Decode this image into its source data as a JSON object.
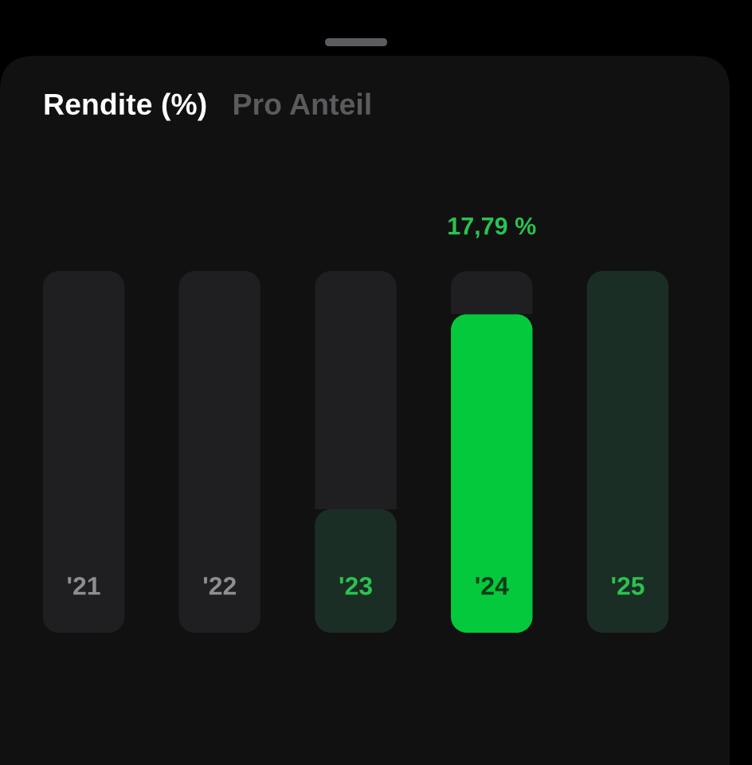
{
  "chart_data": {
    "type": "bar",
    "title": "Rendite (%)",
    "annotations": [
      "Pro Anteil"
    ],
    "categories": [
      "'21",
      "'22",
      "'23",
      "'24",
      "'25"
    ],
    "tick_labels": "x",
    "stacked": true,
    "series": [
      {
        "colors": [
          "#1b2e25",
          "#1b2e25",
          "#1b2e25",
          "#05c93c",
          "#1b2e25"
        ],
        "values": [
          null,
          null,
          6.9,
          17.79,
          20.2
        ],
        "value_labels": [
          null,
          null,
          null,
          "17,79 %",
          null
        ]
      },
      {
        "color": "#1f1f22",
        "values": [
          20.2,
          20.2,
          13.3,
          2.4,
          null
        ]
      }
    ]
  }
}
